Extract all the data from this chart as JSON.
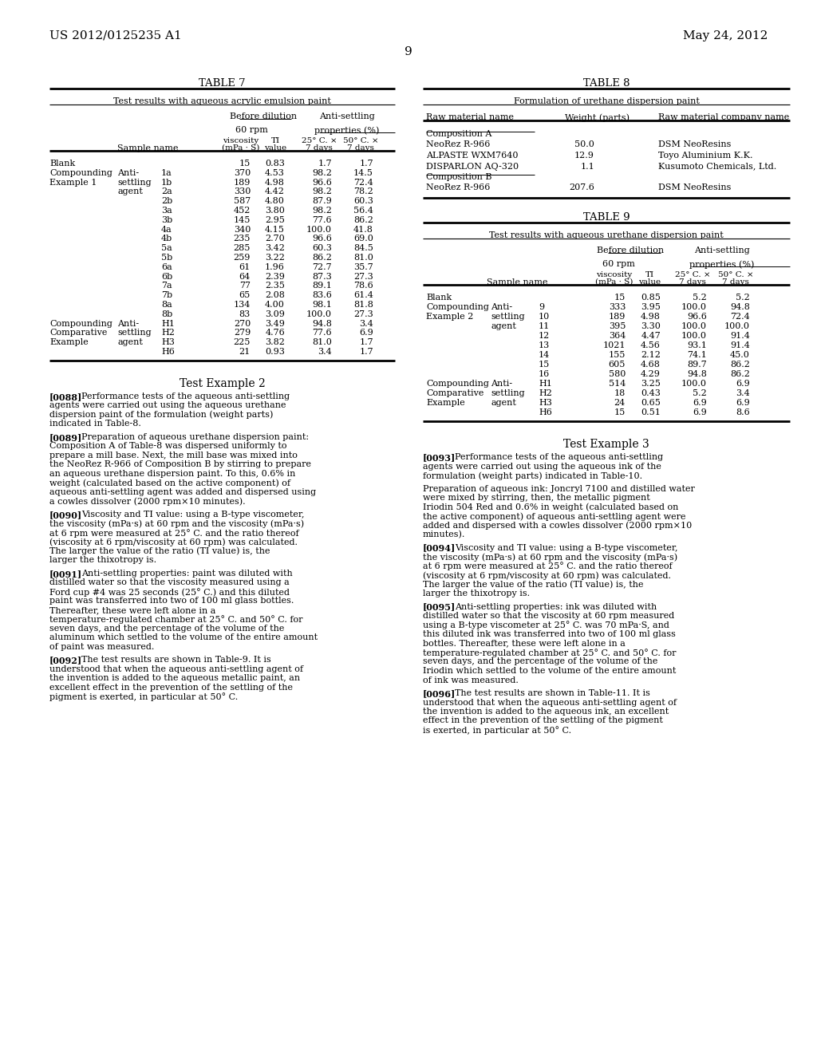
{
  "page_header_left": "US 2012/0125235 A1",
  "page_header_right": "May 24, 2012",
  "page_number": "9",
  "background_color": "#ffffff",
  "table7_title": "TABLE 7",
  "table7_subtitle": "Test results with aqueous acrylic emulsion paint",
  "table7_rows": [
    [
      "Blank",
      "",
      "",
      "15",
      "0.83",
      "1.7",
      "1.7"
    ],
    [
      "Compounding",
      "Anti-",
      "1a",
      "370",
      "4.53",
      "98.2",
      "14.5"
    ],
    [
      "Example 1",
      "settling",
      "1b",
      "189",
      "4.98",
      "96.6",
      "72.4"
    ],
    [
      "",
      "agent",
      "2a",
      "330",
      "4.42",
      "98.2",
      "78.2"
    ],
    [
      "",
      "",
      "2b",
      "587",
      "4.80",
      "87.9",
      "60.3"
    ],
    [
      "",
      "",
      "3a",
      "452",
      "3.80",
      "98.2",
      "56.4"
    ],
    [
      "",
      "",
      "3b",
      "145",
      "2.95",
      "77.6",
      "86.2"
    ],
    [
      "",
      "",
      "4a",
      "340",
      "4.15",
      "100.0",
      "41.8"
    ],
    [
      "",
      "",
      "4b",
      "235",
      "2.70",
      "96.6",
      "69.0"
    ],
    [
      "",
      "",
      "5a",
      "285",
      "3.42",
      "60.3",
      "84.5"
    ],
    [
      "",
      "",
      "5b",
      "259",
      "3.22",
      "86.2",
      "81.0"
    ],
    [
      "",
      "",
      "6a",
      "61",
      "1.96",
      "72.7",
      "35.7"
    ],
    [
      "",
      "",
      "6b",
      "64",
      "2.39",
      "87.3",
      "27.3"
    ],
    [
      "",
      "",
      "7a",
      "77",
      "2.35",
      "89.1",
      "78.6"
    ],
    [
      "",
      "",
      "7b",
      "65",
      "2.08",
      "83.6",
      "61.4"
    ],
    [
      "",
      "",
      "8a",
      "134",
      "4.00",
      "98.1",
      "81.8"
    ],
    [
      "",
      "",
      "8b",
      "83",
      "3.09",
      "100.0",
      "27.3"
    ],
    [
      "Compounding",
      "Anti-",
      "H1",
      "270",
      "3.49",
      "94.8",
      "3.4"
    ],
    [
      "Comparative",
      "settling",
      "H2",
      "279",
      "4.76",
      "77.6",
      "6.9"
    ],
    [
      "Example",
      "agent",
      "H3",
      "225",
      "3.82",
      "81.0",
      "1.7"
    ],
    [
      "",
      "",
      "H6",
      "21",
      "0.93",
      "3.4",
      "1.7"
    ]
  ],
  "table8_title": "TABLE 8",
  "table8_subtitle": "Formulation of urethane dispersion paint",
  "table8_rows": [
    [
      "Composition A",
      "",
      ""
    ],
    [
      "NeoRez R-966",
      "50.0",
      "DSM NeoResins"
    ],
    [
      "ALPASTE WXM7640",
      "12.9",
      "Toyo Aluminium K.K."
    ],
    [
      "DISPARLON AQ-320",
      "1.1",
      "Kusumoto Chemicals, Ltd."
    ],
    [
      "Composition B",
      "",
      ""
    ],
    [
      "NeoRez R-966",
      "207.6",
      "DSM NeoResins"
    ]
  ],
  "table9_title": "TABLE 9",
  "table9_subtitle": "Test results with aqueous urethane dispersion paint",
  "table9_rows": [
    [
      "Blank",
      "",
      "",
      "15",
      "0.85",
      "5.2",
      "5.2"
    ],
    [
      "Compounding",
      "Anti-",
      "9",
      "333",
      "3.95",
      "100.0",
      "94.8"
    ],
    [
      "Example 2",
      "settling",
      "10",
      "189",
      "4.98",
      "96.6",
      "72.4"
    ],
    [
      "",
      "agent",
      "11",
      "395",
      "3.30",
      "100.0",
      "100.0"
    ],
    [
      "",
      "",
      "12",
      "364",
      "4.47",
      "100.0",
      "91.4"
    ],
    [
      "",
      "",
      "13",
      "1021",
      "4.56",
      "93.1",
      "91.4"
    ],
    [
      "",
      "",
      "14",
      "155",
      "2.12",
      "74.1",
      "45.0"
    ],
    [
      "",
      "",
      "15",
      "605",
      "4.68",
      "89.7",
      "86.2"
    ],
    [
      "",
      "",
      "16",
      "580",
      "4.29",
      "94.8",
      "86.2"
    ],
    [
      "Compounding",
      "Anti-",
      "H1",
      "514",
      "3.25",
      "100.0",
      "6.9"
    ],
    [
      "Comparative",
      "settling",
      "H2",
      "18",
      "0.43",
      "5.2",
      "3.4"
    ],
    [
      "Example",
      "agent",
      "H3",
      "24",
      "0.65",
      "6.9",
      "6.9"
    ],
    [
      "",
      "",
      "H6",
      "15",
      "0.51",
      "6.9",
      "8.6"
    ]
  ],
  "test_example2_title": "Test Example 2",
  "test_example2_paragraphs": [
    {
      "tag": "[0088]",
      "text": "Performance tests of the aqueous anti-settling agents were carried out using the aqueous urethane dispersion paint of the formulation (weight parts) indicated in Table-8."
    },
    {
      "tag": "[0089]",
      "text": "Preparation of aqueous urethane dispersion paint: Composition A of Table-8 was dispersed uniformly to prepare a mill base. Next, the mill base was mixed into the NeoRez R-966 of Composition B by stirring to prepare an aqueous urethane dispersion paint. To this, 0.6% in weight (calculated based on the active component) of aqueous anti-settling agent was added and dispersed using a cowles dissolver (2000 rpm×10 minutes)."
    },
    {
      "tag": "[0090]",
      "text": "Viscosity and TI value: using a B-type viscometer, the viscosity (mPa·s) at 60 rpm and the viscosity (mPa·s) at 6 rpm were measured at 25° C. and the ratio thereof (viscosity at 6 rpm/viscosity at 60 rpm) was calculated. The larger the value of the ratio (TI value) is, the larger the thixotropy is."
    },
    {
      "tag": "[0091]",
      "text": "Anti-settling properties: paint was diluted with distilled water so that the viscosity measured using a Ford cup #4 was 25 seconds (25° C.) and this diluted paint was transferred into two of 100 ml glass bottles. Thereafter, these were left alone in a temperature-regulated chamber at 25° C. and 50° C. for seven days, and the percentage of the volume of the aluminum which settled to the volume of the entire amount of paint was measured."
    },
    {
      "tag": "[0092]",
      "text": "The test results are shown in Table-9. It is understood that when the aqueous anti-settling agent of the invention is added to the aqueous metallic paint, an excellent effect in the prevention of the settling of the pigment is exerted, in particular at 50° C."
    }
  ],
  "test_example3_title": "Test Example 3",
  "test_example3_paragraphs": [
    {
      "tag": "[0093]",
      "text": "Performance tests of the aqueous anti-settling agents were carried out using the aqueous ink of the formulation (weight parts) indicated in Table-10."
    },
    {
      "tag": "",
      "text": "Preparation of aqueous ink: Joncryl 7100 and distilled water were mixed by stirring, then, the metallic pigment Iriodin 504 Red and 0.6% in weight (calculated based on the active component) of aqueous anti-settling agent were added and dispersed with a cowles dissolver (2000 rpm×10 minutes)."
    },
    {
      "tag": "[0094]",
      "text": "Viscosity and TI value: using a B-type viscometer, the viscosity (mPa·s) at 60 rpm and the viscosity (mPa·s) at 6 rpm were measured at 25° C. and the ratio thereof (viscosity at 6 rpm/viscosity at 60 rpm) was calculated. The larger the value of the ratio (TI value) is, the larger the thixotropy is."
    },
    {
      "tag": "[0095]",
      "text": "Anti-settling properties: ink was diluted with distilled water so that the viscosity at 60 rpm measured using a B-type viscometer at 25° C. was 70 mPa·S, and this diluted ink was transferred into two of 100 ml glass bottles. Thereafter, these were left alone in a temperature-regulated chamber at 25° C. and 50° C. for seven days, and the percentage of the volume of the Iriodin which settled to the volume of the entire amount of ink was measured."
    },
    {
      "tag": "[0096]",
      "text": "The test results are shown in Table-11. It is understood that when the aqueous anti-settling agent of the invention is added to the aqueous ink, an excellent effect in the prevention of the settling of the pigment is exerted, in particular at 50° C."
    }
  ]
}
